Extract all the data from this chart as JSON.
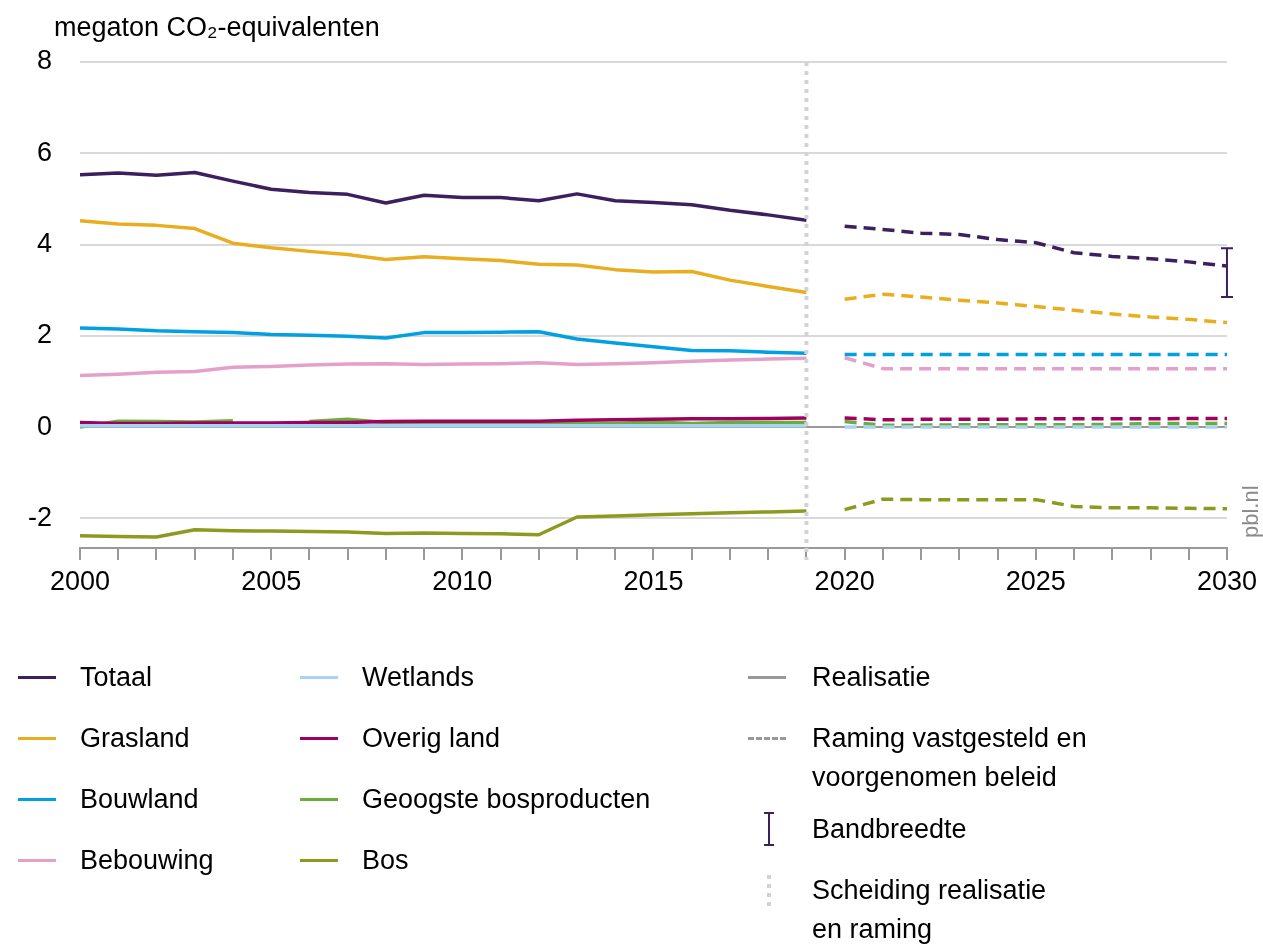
{
  "chart_data": {
    "type": "line",
    "ylabel": "megaton CO₂-equivalenten",
    "xlim": [
      2000,
      2030
    ],
    "xticks": [
      2000,
      {
        "value": 2001,
        "label": null
      },
      {
        "value": 2002,
        "label": null
      },
      {
        "value": 2003,
        "label": null
      },
      {
        "value": 2004,
        "label": null
      },
      2005,
      {
        "value": 2006,
        "label": null
      },
      {
        "value": 2007,
        "label": null
      },
      {
        "value": 2008,
        "label": null
      },
      {
        "value": 2009,
        "label": null
      },
      2010,
      {
        "value": 2011,
        "label": null
      },
      {
        "value": 2012,
        "label": null
      },
      {
        "value": 2013,
        "label": null
      },
      {
        "value": 2014,
        "label": null
      },
      2015,
      {
        "value": 2016,
        "label": null
      },
      {
        "value": 2017,
        "label": null
      },
      {
        "value": 2018,
        "label": null
      },
      {
        "value": 2019,
        "label": null
      },
      2020,
      {
        "value": 2021,
        "label": null
      },
      {
        "value": 2022,
        "label": null
      },
      {
        "value": 2023,
        "label": null
      },
      {
        "value": 2024,
        "label": null
      },
      2025,
      {
        "value": 2026,
        "label": null
      },
      {
        "value": 2027,
        "label": null
      },
      {
        "value": 2028,
        "label": null
      },
      {
        "value": 2029,
        "label": null
      },
      2030
    ],
    "ylim": [
      -2.65,
      8
    ],
    "yticks": [
      -2,
      0,
      2,
      4,
      6,
      8
    ],
    "grid": "y",
    "legend": "bottom",
    "marker": "none",
    "series": [
      {
        "name": "Totaal",
        "color": "#3c1f5e",
        "x": [
          2000,
          2001,
          2002,
          2003,
          2004,
          2005,
          2006,
          2007,
          2008,
          2009,
          2010,
          2011,
          2012,
          2013,
          2014,
          2015,
          2016,
          2017,
          2018,
          2019
        ],
        "values": [
          5.53,
          5.57,
          5.52,
          5.58,
          5.39,
          5.21,
          5.14,
          5.1,
          4.91,
          5.08,
          5.03,
          5.03,
          4.96,
          5.11,
          4.96,
          4.92,
          4.87,
          4.75,
          4.65,
          4.53
        ]
      },
      {
        "name": "Grasland",
        "color": "#e8ae1f",
        "x": [
          2000,
          2001,
          2002,
          2003,
          2004,
          2005,
          2006,
          2007,
          2008,
          2009,
          2010,
          2011,
          2012,
          2013,
          2014,
          2015,
          2016,
          2017,
          2018,
          2019
        ],
        "values": [
          4.52,
          4.45,
          4.42,
          4.35,
          4.03,
          3.93,
          3.85,
          3.78,
          3.67,
          3.73,
          3.69,
          3.65,
          3.57,
          3.55,
          3.45,
          3.4,
          3.41,
          3.22,
          3.08,
          2.95
        ]
      },
      {
        "name": "Bouwland",
        "color": "#00a0e3",
        "x": [
          2000,
          2001,
          2002,
          2003,
          2004,
          2005,
          2006,
          2007,
          2008,
          2009,
          2010,
          2011,
          2012,
          2013,
          2014,
          2015,
          2016,
          2017,
          2018,
          2019
        ],
        "values": [
          2.17,
          2.15,
          2.11,
          2.09,
          2.07,
          2.03,
          2.01,
          1.99,
          1.95,
          2.07,
          2.07,
          2.08,
          2.09,
          1.93,
          1.84,
          1.76,
          1.68,
          1.67,
          1.64,
          1.62
        ]
      },
      {
        "name": "Bebouwing",
        "color": "#e3a1c9",
        "x": [
          2000,
          2001,
          2002,
          2003,
          2004,
          2005,
          2006,
          2007,
          2008,
          2009,
          2010,
          2011,
          2012,
          2013,
          2014,
          2015,
          2016,
          2017,
          2018,
          2019
        ],
        "values": [
          1.13,
          1.16,
          1.2,
          1.22,
          1.31,
          1.33,
          1.36,
          1.38,
          1.39,
          1.37,
          1.38,
          1.39,
          1.41,
          1.37,
          1.39,
          1.41,
          1.44,
          1.47,
          1.49,
          1.51
        ]
      },
      {
        "name": "Wetlands",
        "color": "#a6d4f2",
        "x": [
          2000,
          2001,
          2002,
          2003,
          2004,
          2005,
          2006,
          2007,
          2008,
          2009,
          2010,
          2011,
          2012,
          2013,
          2014,
          2015,
          2016,
          2017,
          2018,
          2019
        ],
        "values": [
          0.03,
          0.03,
          0.03,
          0.03,
          0.03,
          0.03,
          0.03,
          0.03,
          0.03,
          0.03,
          0.03,
          0.03,
          0.03,
          0.03,
          0.03,
          0.03,
          0.03,
          0.03,
          0.03,
          0.03
        ]
      },
      {
        "name": "Overig land",
        "color": "#a0005f",
        "x": [
          2000,
          2001,
          2002,
          2003,
          2004,
          2005,
          2006,
          2007,
          2008,
          2009,
          2010,
          2011,
          2012,
          2013,
          2014,
          2015,
          2016,
          2017,
          2018,
          2019
        ],
        "values": [
          0.1,
          0.08,
          0.08,
          0.09,
          0.09,
          0.09,
          0.1,
          0.1,
          0.12,
          0.13,
          0.13,
          0.13,
          0.13,
          0.15,
          0.16,
          0.17,
          0.18,
          0.18,
          0.19,
          0.2
        ]
      },
      {
        "name": "Geoogste bosproducten",
        "color": "#6aad3b",
        "x": [
          2000,
          2001,
          2002,
          2003,
          2004,
          2005,
          2006,
          2007,
          2008,
          2009,
          2010,
          2011,
          2012,
          2013,
          2014,
          2015,
          2016,
          2017,
          2018,
          2019
        ],
        "values": [
          0.0,
          0.13,
          0.12,
          0.11,
          0.14,
          null,
          0.12,
          0.17,
          0.1,
          0.08,
          0.08,
          0.09,
          0.1,
          0.08,
          0.08,
          0.11,
          0.08,
          0.1,
          0.1,
          0.1
        ]
      },
      {
        "name": "Bos",
        "color": "#8c9a1f",
        "x": [
          2000,
          2001,
          2002,
          2003,
          2004,
          2005,
          2006,
          2007,
          2008,
          2009,
          2010,
          2011,
          2012,
          2013,
          2014,
          2015,
          2016,
          2017,
          2018,
          2019
        ],
        "values": [
          -2.38,
          -2.4,
          -2.41,
          -2.25,
          -2.27,
          -2.28,
          -2.29,
          -2.3,
          -2.33,
          -2.32,
          -2.33,
          -2.34,
          -2.36,
          -1.97,
          -1.95,
          -1.92,
          -1.9,
          -1.88,
          -1.86,
          -1.84
        ]
      },
      {
        "color": "#3c1f5e",
        "line_style": "dashed",
        "x": [
          2020,
          2021,
          2022,
          2023,
          2024,
          2025,
          2026,
          2027,
          2028,
          2029,
          2030
        ],
        "values": [
          4.4,
          4.33,
          4.25,
          4.22,
          4.11,
          4.04,
          3.82,
          3.74,
          3.69,
          3.62,
          3.53
        ],
        "errors": [
          null,
          null,
          null,
          null,
          null,
          null,
          null,
          null,
          null,
          null,
          [
            2.85,
            3.92
          ]
        ]
      },
      {
        "color": "#e8ae1f",
        "line_style": "dashed",
        "x": [
          2020,
          2021,
          2022,
          2023,
          2024,
          2025,
          2026,
          2027,
          2028,
          2029,
          2030
        ],
        "values": [
          2.8,
          2.91,
          2.85,
          2.78,
          2.72,
          2.64,
          2.56,
          2.48,
          2.41,
          2.36,
          2.29
        ]
      },
      {
        "color": "#00a0e3",
        "line_style": "dashed",
        "x": [
          2020,
          2021,
          2022,
          2023,
          2024,
          2025,
          2026,
          2027,
          2028,
          2029,
          2030
        ],
        "values": [
          1.59,
          1.59,
          1.59,
          1.59,
          1.59,
          1.59,
          1.59,
          1.59,
          1.59,
          1.59,
          1.59
        ]
      },
      {
        "color": "#e3a1c9",
        "line_style": "dashed",
        "x": [
          2020,
          2021,
          2022,
          2023,
          2024,
          2025,
          2026,
          2027,
          2028,
          2029,
          2030
        ],
        "values": [
          1.52,
          1.28,
          1.28,
          1.28,
          1.28,
          1.28,
          1.28,
          1.28,
          1.28,
          1.28,
          1.28
        ]
      },
      {
        "color": "#a6d4f2",
        "line_style": "dashed",
        "x": [
          2020,
          2021,
          2022,
          2023,
          2024,
          2025,
          2026,
          2027,
          2028,
          2029,
          2030
        ],
        "values": [
          0.0,
          0.0,
          0.0,
          0.0,
          0.0,
          0.0,
          0.0,
          0.0,
          0.0,
          0.0,
          0.0
        ]
      },
      {
        "color": "#a0005f",
        "line_style": "dashed",
        "x": [
          2020,
          2021,
          2022,
          2023,
          2024,
          2025,
          2026,
          2027,
          2028,
          2029,
          2030
        ],
        "values": [
          0.2,
          0.16,
          0.17,
          0.17,
          0.17,
          0.18,
          0.18,
          0.18,
          0.18,
          0.19,
          0.19
        ]
      },
      {
        "color": "#6aad3b",
        "line_style": "dashed",
        "x": [
          2020,
          2021,
          2022,
          2023,
          2024,
          2025,
          2026,
          2027,
          2028,
          2029,
          2030
        ],
        "values": [
          0.12,
          0.04,
          0.04,
          0.05,
          0.05,
          0.05,
          0.05,
          0.06,
          0.08,
          0.08,
          0.08
        ]
      },
      {
        "color": "#8c9a1f",
        "line_style": "dashed",
        "x": [
          2020,
          2021,
          2022,
          2023,
          2024,
          2025,
          2026,
          2027,
          2028,
          2029,
          2030
        ],
        "values": [
          -1.81,
          -1.58,
          -1.59,
          -1.59,
          -1.59,
          -1.59,
          -1.74,
          -1.77,
          -1.77,
          -1.78,
          -1.79
        ]
      }
    ],
    "ref_lines": [
      {
        "axis": "x",
        "value": 2019,
        "label": "Scheiding realisatie en raming",
        "color": "#d3d3d3",
        "line_style": "dotted"
      }
    ],
    "annotations": [
      "Realisatie",
      "Raming vastgesteld en voorgenomen beleid",
      "Bandbreedte",
      "pbl.nl"
    ]
  }
}
